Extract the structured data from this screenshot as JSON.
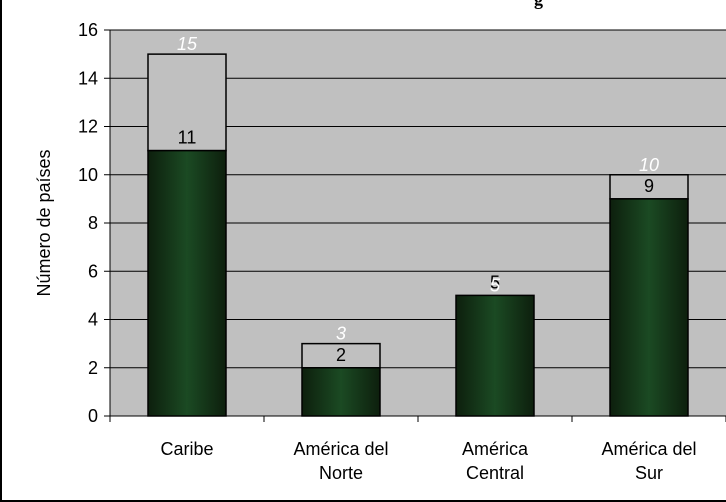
{
  "title": "g",
  "chart_data": {
    "type": "bar",
    "title": "g",
    "xlabel": "",
    "ylabel": "Número de países",
    "ylim": [
      0,
      16
    ],
    "ytick_step": 2,
    "grid": true,
    "categories": [
      [
        "Caribe"
      ],
      [
        "América del",
        "Norte"
      ],
      [
        "América",
        "Central"
      ],
      [
        "América del",
        "Sur"
      ]
    ],
    "series": [
      {
        "values": [
          11,
          2,
          5,
          9
        ],
        "labels": [
          "11",
          "2",
          "5",
          "9"
        ]
      },
      {
        "values": [
          4,
          1,
          0,
          1
        ]
      }
    ],
    "totals": [
      15,
      3,
      5,
      10
    ],
    "total_labels": [
      "15",
      "3",
      "5",
      "10"
    ]
  },
  "colors": {
    "plot_bg": "#c0c0c0",
    "bar_dark_edge": "#0d1f0d",
    "bar_dark_mid": "#1b4a23",
    "bar_light": "#c0c0c0",
    "grid": "#000000",
    "total_label": "#ffffff"
  }
}
